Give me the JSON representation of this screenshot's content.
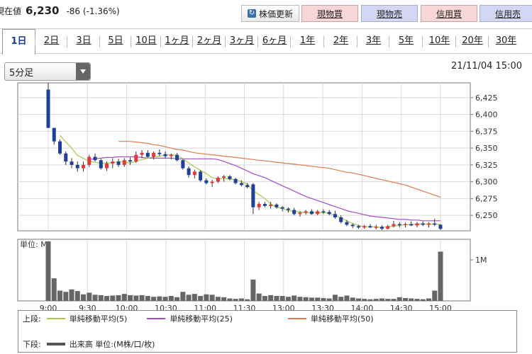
{
  "quote": {
    "label": "現在値",
    "price": "6,230",
    "change": "-86 (-1.36%)"
  },
  "toolbar": {
    "refresh_label": "株価更新",
    "buttons": [
      {
        "label": "現物買",
        "color": "red"
      },
      {
        "label": "現物売",
        "color": "blue"
      },
      {
        "label": "信用買",
        "color": "red"
      },
      {
        "label": "信用売",
        "color": "blue"
      }
    ]
  },
  "tabs": [
    "1日",
    "2日",
    "3日",
    "5日",
    "10日",
    "1ヶ月",
    "2ヶ月",
    "3ヶ月",
    "6ヶ月",
    "1年",
    "2年",
    "3年",
    "5年",
    "10年",
    "20年",
    "30年"
  ],
  "active_tab": "1日",
  "interval_select": {
    "value": "5分足"
  },
  "timestamp": "21/11/04 15:00",
  "chart_data": {
    "type": "candlestick",
    "y_ticks": [
      "6,425",
      "6,400",
      "6,375",
      "6,350",
      "6,325",
      "6,300",
      "6,275",
      "6,250"
    ],
    "ylim": [
      6227,
      6447
    ],
    "x_labels": [
      "9:00",
      "9:30",
      "10:00",
      "10:30",
      "11:00",
      "11:30",
      "13:00",
      "13:30",
      "14:00",
      "14:30",
      "15:00"
    ],
    "candles": [
      [
        6437,
        6447,
        6380,
        6380
      ],
      [
        6380,
        6380,
        6355,
        6360
      ],
      [
        6360,
        6363,
        6340,
        6342
      ],
      [
        6342,
        6345,
        6325,
        6330
      ],
      [
        6330,
        6335,
        6320,
        6325
      ],
      [
        6325,
        6330,
        6315,
        6320
      ],
      [
        6320,
        6330,
        6315,
        6325
      ],
      [
        6325,
        6340,
        6322,
        6337
      ],
      [
        6337,
        6342,
        6330,
        6332
      ],
      [
        6332,
        6334,
        6318,
        6320
      ],
      [
        6320,
        6330,
        6316,
        6327
      ],
      [
        6327,
        6335,
        6320,
        6330
      ],
      [
        6330,
        6334,
        6322,
        6325
      ],
      [
        6325,
        6335,
        6322,
        6332
      ],
      [
        6332,
        6336,
        6325,
        6330
      ],
      [
        6330,
        6345,
        6328,
        6340
      ],
      [
        6340,
        6347,
        6335,
        6343
      ],
      [
        6343,
        6347,
        6335,
        6337
      ],
      [
        6337,
        6345,
        6333,
        6343
      ],
      [
        6343,
        6348,
        6338,
        6341
      ],
      [
        6341,
        6345,
        6335,
        6338
      ],
      [
        6338,
        6342,
        6333,
        6340
      ],
      [
        6340,
        6343,
        6330,
        6332
      ],
      [
        6332,
        6334,
        6318,
        6320
      ],
      [
        6320,
        6323,
        6306,
        6310
      ],
      [
        6310,
        6318,
        6305,
        6315
      ],
      [
        6315,
        6317,
        6300,
        6302
      ],
      [
        6302,
        6305,
        6296,
        6298
      ],
      [
        6298,
        6303,
        6292,
        6300
      ],
      [
        6300,
        6308,
        6298,
        6306
      ],
      [
        6306,
        6310,
        6300,
        6308
      ],
      [
        6308,
        6310,
        6302,
        6304
      ],
      [
        6304,
        6306,
        6296,
        6298
      ],
      [
        6298,
        6302,
        6293,
        6295
      ],
      [
        6295,
        6298,
        6290,
        6292
      ],
      [
        6296,
        6298,
        6252,
        6262
      ],
      [
        6262,
        6270,
        6258,
        6267
      ],
      [
        6267,
        6270,
        6262,
        6264
      ],
      [
        6264,
        6270,
        6260,
        6266
      ],
      [
        6266,
        6268,
        6260,
        6262
      ],
      [
        6262,
        6264,
        6256,
        6260
      ],
      [
        6260,
        6262,
        6254,
        6258
      ],
      [
        6258,
        6261,
        6250,
        6252
      ],
      [
        6252,
        6256,
        6248,
        6254
      ],
      [
        6254,
        6258,
        6251,
        6256
      ],
      [
        6256,
        6259,
        6251,
        6252
      ],
      [
        6252,
        6258,
        6250,
        6256
      ],
      [
        6256,
        6259,
        6252,
        6255
      ],
      [
        6255,
        6258,
        6250,
        6252
      ],
      [
        6252,
        6257,
        6245,
        6247
      ],
      [
        6247,
        6250,
        6238,
        6240
      ],
      [
        6240,
        6243,
        6234,
        6236
      ],
      [
        6236,
        6238,
        6231,
        6234
      ],
      [
        6234,
        6236,
        6230,
        6232
      ],
      [
        6232,
        6236,
        6230,
        6234
      ],
      [
        6234,
        6237,
        6231,
        6232
      ],
      [
        6232,
        6236,
        6229,
        6233
      ],
      [
        6233,
        6235,
        6228,
        6230
      ],
      [
        6230,
        6236,
        6229,
        6234
      ],
      [
        6234,
        6242,
        6232,
        6237
      ],
      [
        6237,
        6240,
        6232,
        6236
      ],
      [
        6236,
        6239,
        6232,
        6237
      ],
      [
        6237,
        6241,
        6234,
        6235
      ],
      [
        6235,
        6240,
        6232,
        6238
      ],
      [
        6238,
        6241,
        6234,
        6236
      ],
      [
        6236,
        6240,
        6232,
        6238
      ],
      [
        6238,
        6245,
        6234,
        6236
      ],
      [
        6236,
        6237,
        6228,
        6230
      ]
    ],
    "sma5": [
      6369,
      6359,
      6350,
      6339,
      6335,
      6330,
      6329,
      6327,
      6328,
      6328,
      6330,
      6329,
      6328,
      6330,
      6333,
      6335,
      6337,
      6338,
      6340,
      6340,
      6339,
      6334,
      6328,
      6322,
      6317,
      6312,
      6306,
      6304,
      6305,
      6304,
      6303,
      6300,
      6297,
      6286,
      6281,
      6275,
      6267,
      6262,
      6260,
      6257,
      6256,
      6255,
      6254,
      6254,
      6254,
      6254,
      6253,
      6250,
      6246,
      6242,
      6238,
      6235,
      6233,
      6233,
      6233,
      6232,
      6233,
      6234,
      6235,
      6236,
      6236,
      6237,
      6237,
      6237,
      6237,
      6236
    ],
    "sma25": [
      6333,
      6334,
      6335,
      6336,
      6336,
      6337,
      6337,
      6337,
      6337,
      6336,
      6335,
      6335,
      6335,
      6335,
      6335,
      6334,
      6334,
      6334,
      6334,
      6334,
      6334,
      6334,
      6333,
      6330,
      6327,
      6324,
      6320,
      6316,
      6312,
      6309,
      6306,
      6302,
      6298,
      6294,
      6290,
      6286,
      6282,
      6278,
      6275,
      6272,
      6269,
      6266,
      6263,
      6260,
      6257,
      6255,
      6253,
      6251,
      6249,
      6248,
      6247,
      6246,
      6245,
      6244,
      6244,
      6243,
      6243,
      6242,
      6242,
      6242,
      6242
    ],
    "sma50": [
      6360,
      6360,
      6360,
      6359,
      6358,
      6357,
      6355,
      6354,
      6352,
      6350,
      6348,
      6347,
      6345,
      6343,
      6342,
      6341,
      6340,
      6339,
      6338,
      6337,
      6336,
      6335,
      6334,
      6333,
      6332,
      6331,
      6330,
      6329,
      6328,
      6327,
      6326,
      6325,
      6324,
      6323,
      6322,
      6321,
      6320,
      6318,
      6316,
      6314,
      6313,
      6311,
      6309,
      6307,
      6305,
      6303,
      6301,
      6299,
      6297,
      6295,
      6292,
      6289,
      6286,
      6283,
      6280,
      6277
    ],
    "volume_label": "単位: M",
    "volume_tick": "1M",
    "volume": [
      1.45,
      0.55,
      0.25,
      0.22,
      0.28,
      0.24,
      0.16,
      0.2,
      0.15,
      0.14,
      0.12,
      0.13,
      0.14,
      0.17,
      0.14,
      0.13,
      0.14,
      0.12,
      0.1,
      0.11,
      0.1,
      0.12,
      0.09,
      0.22,
      0.15,
      0.17,
      0.12,
      0.16,
      0.15,
      0.1,
      0.09,
      0.06,
      0.05,
      0.06,
      0.04,
      0.52,
      0.18,
      0.12,
      0.14,
      0.12,
      0.12,
      0.1,
      0.13,
      0.1,
      0.09,
      0.08,
      0.08,
      0.07,
      0.06,
      0.15,
      0.1,
      0.13,
      0.08,
      0.06,
      0.05,
      0.04,
      0.05,
      0.06,
      0.05,
      0.05,
      0.09,
      0.07,
      0.06,
      0.05,
      0.04,
      0.06,
      0.25,
      1.2
    ]
  },
  "legend": {
    "upper_label": "上段:",
    "lower_label": "下段:",
    "items": [
      {
        "label": "単純移動平均(5)",
        "color": "#a8c84a"
      },
      {
        "label": "単純移動平均(25)",
        "color": "#a34ccf"
      },
      {
        "label": "単純移動平均(50)",
        "color": "#e07a4f"
      }
    ],
    "volume_label": "出来高 単位:(M株/口/枚)"
  }
}
